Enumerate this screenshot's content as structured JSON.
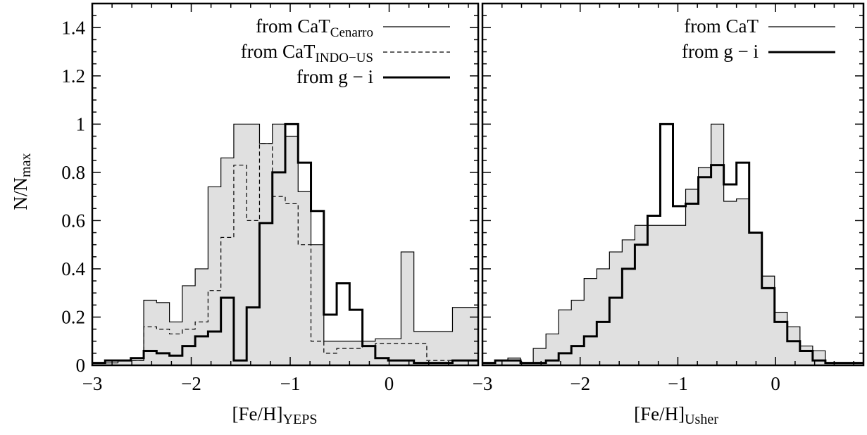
{
  "figure": {
    "ylabel": "N/N",
    "ylabel_sub": "max"
  },
  "chart_data": [
    {
      "type": "histogram",
      "panel": "left",
      "xlabel": "[Fe/H]",
      "xlabel_sub": "YEPS",
      "ylabel": "N/N_max",
      "xlim": [
        -3.0,
        0.9
      ],
      "ylim": [
        0,
        1.5
      ],
      "x_ticks": [
        -3,
        -2,
        -1,
        0
      ],
      "x_tick_labels": [
        "−3",
        "−2",
        "−1",
        "0"
      ],
      "y_ticks": [
        0,
        0.2,
        0.4,
        0.6,
        0.8,
        1,
        1.2,
        1.4
      ],
      "y_tick_labels": [
        "0",
        "0.2",
        "0.4",
        "0.6",
        "0.8",
        "1",
        "1.2",
        "1.4"
      ],
      "bin_edges": [
        -3.0,
        -2.87,
        -2.74,
        -2.61,
        -2.48,
        -2.35,
        -2.22,
        -2.09,
        -1.96,
        -1.83,
        -1.7,
        -1.57,
        -1.44,
        -1.31,
        -1.18,
        -1.05,
        -0.92,
        -0.79,
        -0.66,
        -0.53,
        -0.4,
        -0.27,
        -0.14,
        -0.01,
        0.12,
        0.25,
        0.38,
        0.51,
        0.64,
        0.77,
        0.9
      ],
      "legend_position": "top-right",
      "series": [
        {
          "name": "from CaT",
          "name_sub": "Cenarro",
          "style": "thin-solid-filled",
          "fill": "#e0e0e0",
          "values": [
            0.01,
            0.01,
            0.02,
            0.02,
            0.27,
            0.26,
            0.18,
            0.33,
            0.4,
            0.74,
            0.86,
            1.0,
            1.0,
            0.92,
            1.0,
            0.95,
            0.72,
            0.5,
            0.1,
            0.1,
            0.1,
            0.1,
            0.11,
            0.11,
            0.47,
            0.14,
            0.14,
            0.14,
            0.24,
            0.24
          ]
        },
        {
          "name": "from CaT",
          "name_sub": "INDO−US",
          "style": "thin-dashed",
          "values": [
            0.01,
            0.01,
            0.02,
            0.02,
            0.16,
            0.15,
            0.13,
            0.15,
            0.18,
            0.31,
            0.53,
            0.83,
            0.6,
            0.92,
            0.7,
            0.67,
            0.5,
            0.1,
            0.05,
            0.07,
            0.07,
            0.08,
            0.09,
            0.09,
            0.09,
            0.09,
            0.02,
            0.02,
            0.02,
            0.02
          ]
        },
        {
          "name": "from g − i",
          "style": "thick-solid",
          "values": [
            0.01,
            0.02,
            0.02,
            0.03,
            0.06,
            0.05,
            0.04,
            0.08,
            0.12,
            0.14,
            0.28,
            0.02,
            0.24,
            0.59,
            0.8,
            1.0,
            0.84,
            0.64,
            0.21,
            0.34,
            0.23,
            0.08,
            0.03,
            0.02,
            0.02,
            0.01,
            0.01,
            0.01,
            0.02,
            0.02
          ]
        }
      ]
    },
    {
      "type": "histogram",
      "panel": "right",
      "xlabel": "[Fe/H]",
      "xlabel_sub": "Usher",
      "xlim": [
        -3.0,
        0.9
      ],
      "ylim": [
        0,
        1.5
      ],
      "x_ticks": [
        -3,
        -2,
        -1,
        0
      ],
      "x_tick_labels": [
        "−3",
        "−2",
        "−1",
        "0"
      ],
      "y_ticks": [
        0,
        0.2,
        0.4,
        0.6,
        0.8,
        1,
        1.2,
        1.4
      ],
      "bin_edges": [
        -3.0,
        -2.87,
        -2.74,
        -2.61,
        -2.48,
        -2.35,
        -2.22,
        -2.09,
        -1.96,
        -1.83,
        -1.7,
        -1.57,
        -1.44,
        -1.31,
        -1.18,
        -1.05,
        -0.92,
        -0.79,
        -0.66,
        -0.53,
        -0.4,
        -0.27,
        -0.14,
        -0.01,
        0.12,
        0.25,
        0.38,
        0.51,
        0.64,
        0.77,
        0.9
      ],
      "legend_position": "top-right",
      "series": [
        {
          "name": "from CaT",
          "style": "thin-solid-filled",
          "fill": "#e0e0e0",
          "values": [
            0.01,
            0.02,
            0.03,
            0.01,
            0.07,
            0.13,
            0.23,
            0.27,
            0.36,
            0.4,
            0.47,
            0.52,
            0.58,
            0.58,
            0.58,
            0.58,
            0.73,
            0.82,
            1.0,
            0.68,
            0.69,
            0.55,
            0.37,
            0.22,
            0.16,
            0.08,
            0.06,
            0.01,
            0.01,
            0.01
          ]
        },
        {
          "name": "from g − i",
          "style": "thick-solid",
          "values": [
            0.01,
            0.02,
            0.02,
            0.01,
            0.01,
            0.02,
            0.05,
            0.08,
            0.12,
            0.18,
            0.28,
            0.4,
            0.5,
            0.62,
            1.0,
            0.66,
            0.67,
            0.78,
            0.83,
            0.75,
            0.84,
            0.55,
            0.32,
            0.18,
            0.1,
            0.06,
            0.02,
            0.01,
            0.01,
            0.01
          ]
        }
      ]
    }
  ]
}
